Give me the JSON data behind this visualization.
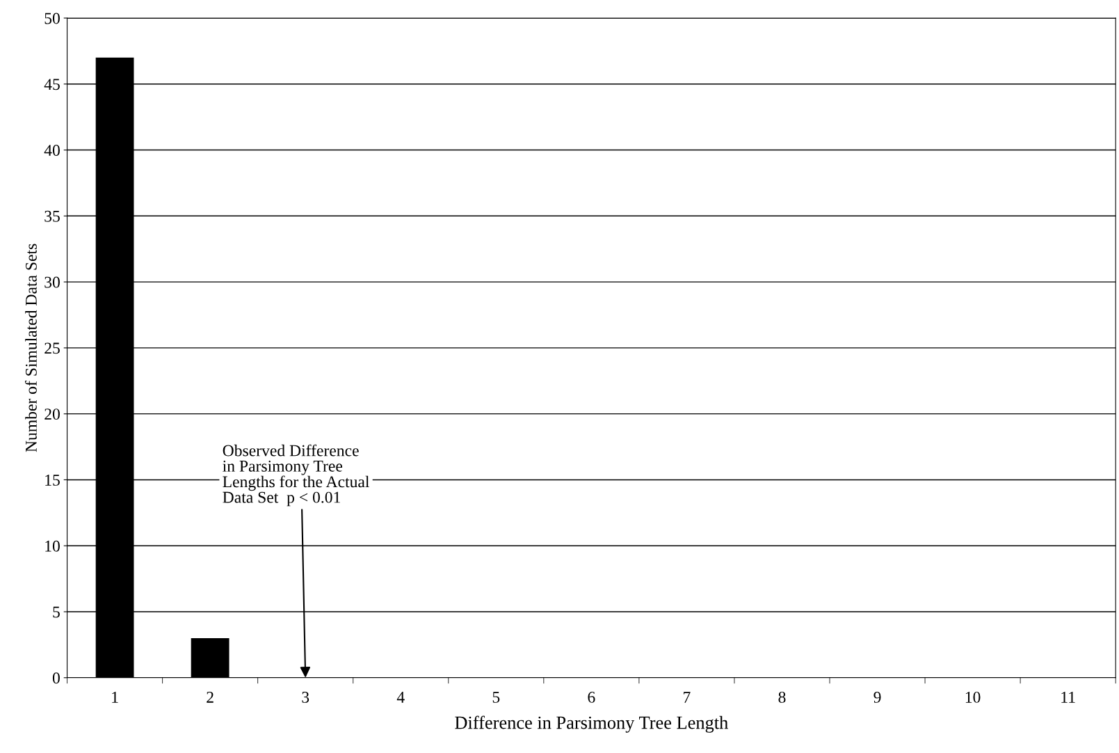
{
  "chart_data": {
    "type": "bar",
    "xlabel": "Difference in Parsimony Tree Length",
    "ylabel": "Number of Simulated Data Sets",
    "categories": [
      "1",
      "2",
      "3",
      "4",
      "5",
      "6",
      "7",
      "8",
      "9",
      "10",
      "11"
    ],
    "values": [
      47,
      3,
      0,
      0,
      0,
      0,
      0,
      0,
      0,
      0,
      0
    ],
    "color": "#000000",
    "ylim": [
      0,
      50
    ],
    "yticks": [
      0,
      5,
      10,
      15,
      20,
      25,
      30,
      35,
      40,
      45,
      50
    ],
    "grid": "y",
    "legend": false,
    "annotations": [
      {
        "text": "Observed Difference\nin Parsimony Tree\nLengths for the Actual\nData Set  p < 0.01",
        "x": "3",
        "y": 0
      }
    ]
  }
}
